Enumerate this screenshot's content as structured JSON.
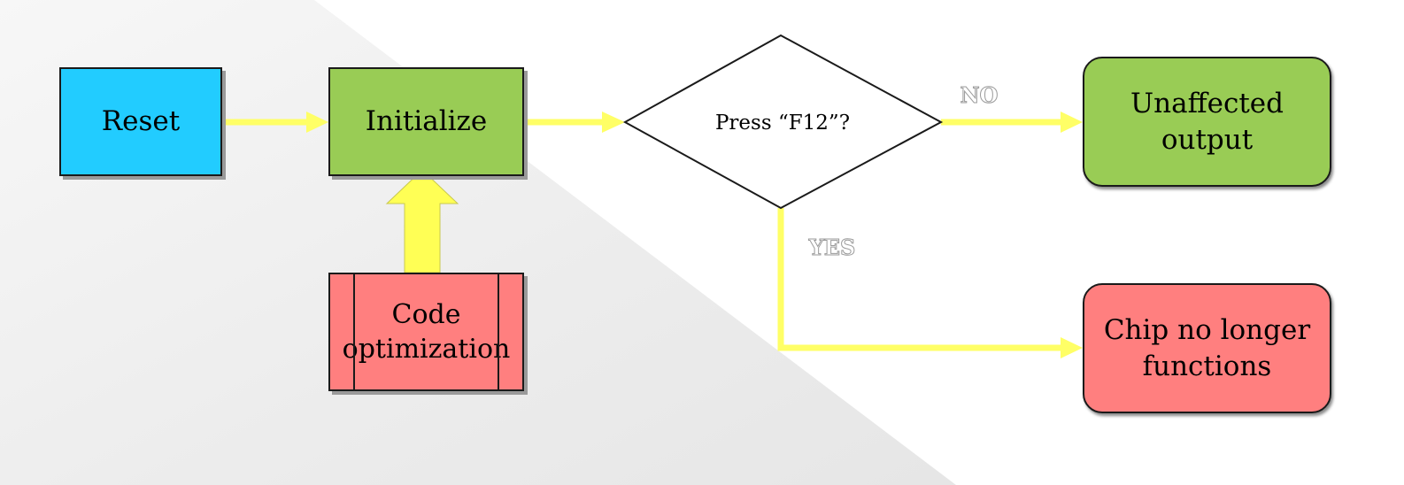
{
  "nodes": {
    "reset": "Reset",
    "initialize": "Initialize",
    "code_optimization": "Code\noptimization",
    "decision": "Press “F12”?",
    "unaffected_output": "Unaffected\noutput",
    "chip_no_longer_functions": "Chip no longer\nfunctions"
  },
  "edge_labels": {
    "no": "NO",
    "yes": "YES"
  },
  "colors": {
    "reset_fill": "#22ccff",
    "green_fill": "#99cc55",
    "red_fill": "#ff7f7f",
    "arrow_yellow": "#ffff66",
    "background_gray": "#ebebeb"
  }
}
